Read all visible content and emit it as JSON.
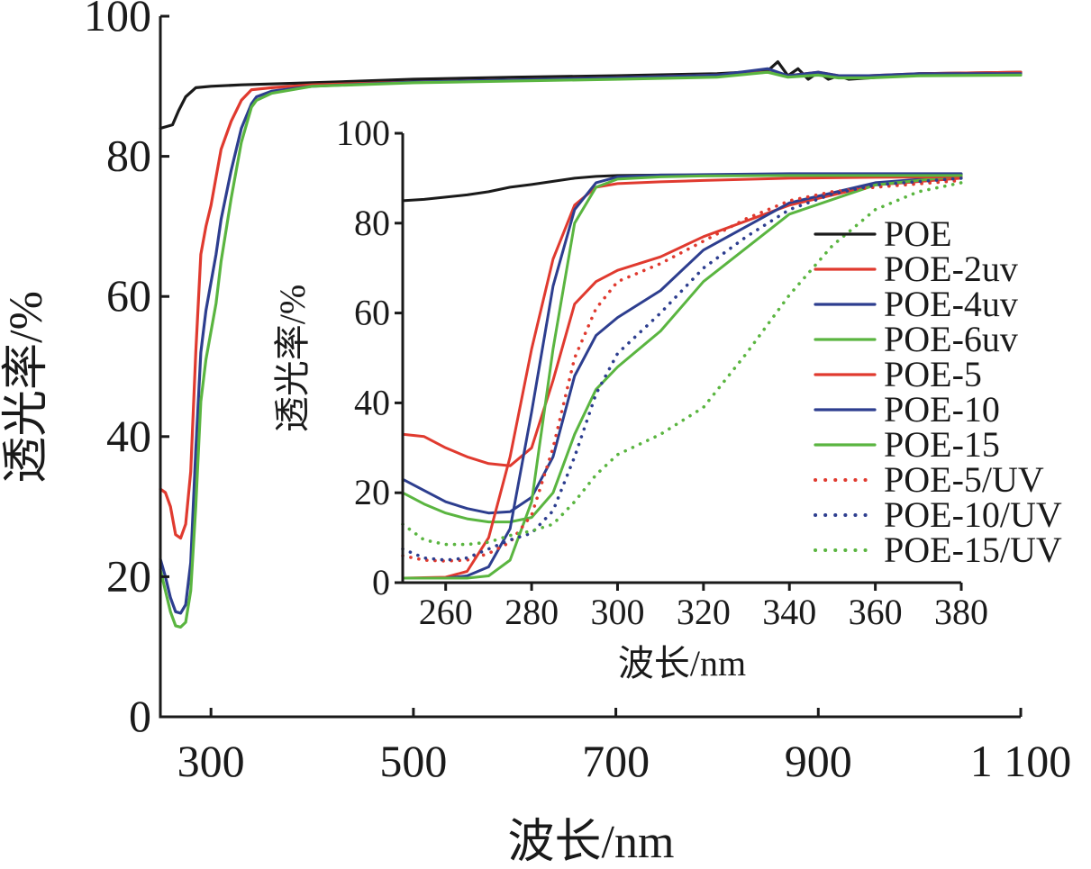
{
  "chart_data": [
    {
      "type": "line",
      "panel": "main",
      "xlabel": "波长/nm",
      "ylabel": "透光率/%",
      "xlim": [
        250,
        1100
      ],
      "ylim": [
        0,
        100
      ],
      "xticks": [
        300,
        500,
        700,
        900,
        1100
      ],
      "xtick_labels": [
        "300",
        "500",
        "700",
        "900",
        "1 100"
      ],
      "yticks": [
        0,
        20,
        40,
        60,
        80,
        100
      ],
      "ytick_labels": [
        "0",
        "20",
        "40",
        "60",
        "80",
        "100"
      ],
      "series": [
        {
          "name": "POE",
          "color": "#1a1a1a",
          "style": "solid",
          "x": [
            250,
            262,
            268,
            275,
            285,
            300,
            330,
            400,
            500,
            600,
            700,
            800,
            850,
            860,
            870,
            880,
            890,
            900,
            910,
            920,
            930,
            950,
            1000,
            1100
          ],
          "y": [
            84.0,
            84.5,
            86.5,
            88.5,
            89.8,
            90.0,
            90.2,
            90.5,
            91.0,
            91.3,
            91.5,
            91.8,
            92.2,
            93.5,
            91.5,
            92.5,
            91.0,
            92.0,
            91.0,
            91.5,
            91.0,
            91.2,
            91.8,
            92.0
          ]
        },
        {
          "name": "POE-2uv",
          "color": "#e03a2f",
          "style": "solid",
          "x": [
            250,
            255,
            260,
            265,
            270,
            275,
            280,
            285,
            290,
            295,
            300,
            305,
            310,
            320,
            330,
            340,
            360,
            400,
            500,
            700,
            800,
            850,
            870,
            900,
            920,
            950,
            1000,
            1100
          ],
          "y": [
            32.5,
            32.0,
            30.0,
            26.0,
            25.5,
            27.5,
            35.0,
            52.0,
            66.0,
            70.0,
            73.0,
            77.0,
            81.0,
            85.0,
            88.0,
            89.5,
            89.8,
            90.2,
            90.6,
            91.2,
            91.6,
            92.0,
            91.5,
            92.0,
            91.5,
            91.5,
            91.8,
            92.0
          ]
        },
        {
          "name": "POE-4uv",
          "color": "#2d3e8f",
          "style": "solid",
          "x": [
            250,
            255,
            260,
            265,
            270,
            275,
            280,
            285,
            290,
            295,
            300,
            305,
            310,
            320,
            330,
            340,
            345,
            360,
            400,
            500,
            700,
            800,
            850,
            870,
            900,
            920,
            950,
            1000,
            1100
          ],
          "y": [
            22.5,
            20.0,
            17.0,
            15.0,
            14.8,
            16.0,
            22.0,
            38.0,
            52.0,
            58.0,
            62.0,
            66.0,
            71.0,
            78.0,
            84.0,
            87.5,
            88.5,
            89.3,
            90.0,
            90.6,
            91.2,
            91.6,
            92.5,
            91.5,
            92.0,
            91.5,
            91.5,
            91.8,
            91.8
          ]
        },
        {
          "name": "POE-6uv",
          "color": "#5ab540",
          "style": "solid",
          "x": [
            250,
            255,
            260,
            265,
            270,
            275,
            280,
            285,
            290,
            295,
            300,
            305,
            310,
            320,
            330,
            340,
            345,
            360,
            400,
            500,
            700,
            800,
            850,
            870,
            900,
            920,
            950,
            1000,
            1100
          ],
          "y": [
            21.0,
            18.0,
            15.0,
            13.0,
            12.8,
            13.5,
            18.0,
            30.0,
            45.0,
            51.0,
            55.0,
            59.0,
            65.0,
            74.0,
            82.0,
            87.0,
            88.0,
            89.0,
            90.0,
            90.5,
            91.0,
            91.3,
            92.0,
            91.3,
            91.6,
            91.2,
            91.2,
            91.5,
            91.6
          ]
        }
      ]
    },
    {
      "type": "line",
      "panel": "inset",
      "xlabel": "波长/nm",
      "ylabel": "透光率/%",
      "xlim": [
        250,
        380
      ],
      "ylim": [
        0,
        100
      ],
      "xticks": [
        260,
        280,
        300,
        320,
        340,
        360,
        380
      ],
      "xtick_labels": [
        "260",
        "280",
        "300",
        "320",
        "340",
        "360",
        "380"
      ],
      "yticks": [
        0,
        20,
        40,
        60,
        80,
        100
      ],
      "ytick_labels": [
        "0",
        "20",
        "40",
        "60",
        "80",
        "100"
      ],
      "legend_position": "right",
      "series": [
        {
          "name": "POE",
          "color": "#1a1a1a",
          "style": "solid",
          "x": [
            250,
            255,
            260,
            265,
            270,
            275,
            280,
            285,
            290,
            295,
            300,
            310,
            320,
            340,
            360,
            380
          ],
          "y": [
            85.0,
            85.3,
            85.8,
            86.3,
            87.0,
            88.0,
            88.6,
            89.3,
            90.0,
            90.4,
            90.6,
            90.7,
            90.7,
            90.8,
            90.8,
            90.8
          ]
        },
        {
          "name": "POE-2uv",
          "color": "#e03a2f",
          "style": "solid",
          "x": [
            250,
            255,
            260,
            265,
            270,
            275,
            280,
            285,
            290,
            295,
            300,
            310,
            320,
            340,
            360,
            380
          ],
          "y": [
            33.0,
            32.5,
            30.0,
            28.0,
            26.5,
            26.0,
            30.0,
            45.0,
            62.0,
            67.0,
            69.5,
            72.5,
            77.0,
            84.0,
            88.5,
            90.0
          ]
        },
        {
          "name": "POE-4uv",
          "color": "#2d3e8f",
          "style": "solid",
          "x": [
            250,
            255,
            260,
            265,
            270,
            275,
            280,
            285,
            290,
            295,
            300,
            310,
            320,
            340,
            360,
            380
          ],
          "y": [
            23.0,
            20.5,
            18.0,
            16.5,
            15.5,
            15.8,
            19.0,
            28.0,
            46.0,
            55.0,
            59.0,
            65.0,
            74.0,
            84.5,
            89.0,
            90.5
          ]
        },
        {
          "name": "POE-6uv",
          "color": "#5ab540",
          "style": "solid",
          "x": [
            250,
            255,
            260,
            265,
            270,
            275,
            280,
            285,
            290,
            295,
            300,
            310,
            320,
            340,
            360,
            380
          ],
          "y": [
            20.0,
            17.5,
            15.5,
            14.2,
            13.5,
            13.5,
            14.5,
            20.0,
            33.0,
            43.0,
            48.0,
            56.0,
            67.0,
            82.0,
            88.5,
            90.5
          ]
        },
        {
          "name": "POE-5",
          "color": "#e03a2f",
          "style": "solid",
          "x": [
            250,
            260,
            265,
            270,
            275,
            280,
            285,
            290,
            295,
            300,
            310,
            320,
            340,
            360,
            380
          ],
          "y": [
            1.0,
            1.2,
            2.5,
            10.0,
            28.0,
            52.0,
            72.0,
            84.0,
            88.0,
            88.8,
            89.2,
            89.5,
            90.0,
            90.2,
            90.3
          ]
        },
        {
          "name": "POE-10",
          "color": "#2d3e8f",
          "style": "solid",
          "x": [
            250,
            260,
            265,
            270,
            275,
            280,
            285,
            290,
            295,
            300,
            310,
            320,
            340,
            360,
            380
          ],
          "y": [
            1.0,
            1.0,
            1.5,
            3.5,
            12.0,
            38.0,
            66.0,
            83.0,
            89.0,
            90.3,
            90.7,
            90.8,
            91.0,
            91.0,
            91.0
          ]
        },
        {
          "name": "POE-15",
          "color": "#5ab540",
          "style": "solid",
          "x": [
            250,
            260,
            265,
            270,
            275,
            280,
            285,
            290,
            295,
            300,
            310,
            320,
            340,
            360,
            380
          ],
          "y": [
            1.0,
            1.0,
            1.0,
            1.5,
            5.0,
            18.0,
            52.0,
            80.0,
            88.0,
            89.8,
            90.3,
            90.5,
            90.6,
            90.6,
            90.6
          ]
        },
        {
          "name": "POE-5/UV",
          "color": "#e03a2f",
          "style": "dotted",
          "x": [
            250,
            255,
            260,
            265,
            270,
            275,
            280,
            285,
            290,
            295,
            300,
            310,
            320,
            330,
            340,
            350,
            360,
            380
          ],
          "y": [
            6.0,
            5.0,
            4.8,
            5.0,
            6.5,
            9.0,
            15.0,
            30.0,
            50.0,
            61.0,
            67.0,
            71.0,
            76.0,
            81.0,
            85.0,
            87.0,
            88.0,
            89.5
          ]
        },
        {
          "name": "POE-10/UV",
          "color": "#2d3e8f",
          "style": "dotted",
          "x": [
            250,
            255,
            260,
            265,
            270,
            275,
            280,
            285,
            290,
            295,
            300,
            310,
            320,
            330,
            340,
            350,
            360,
            380
          ],
          "y": [
            7.5,
            5.5,
            5.0,
            5.5,
            7.5,
            9.5,
            11.0,
            16.0,
            28.0,
            42.0,
            51.0,
            60.0,
            70.0,
            77.0,
            83.0,
            86.5,
            88.5,
            90.0
          ]
        },
        {
          "name": "POE-15/UV",
          "color": "#5ab540",
          "style": "dotted",
          "x": [
            250,
            255,
            260,
            265,
            270,
            275,
            280,
            285,
            290,
            295,
            300,
            310,
            320,
            330,
            340,
            350,
            360,
            370,
            380
          ],
          "y": [
            13.0,
            9.5,
            8.5,
            8.5,
            9.0,
            10.5,
            11.5,
            13.0,
            18.0,
            24.0,
            28.5,
            33.0,
            39.0,
            51.0,
            64.0,
            75.0,
            83.0,
            87.0,
            89.0
          ]
        }
      ]
    }
  ]
}
